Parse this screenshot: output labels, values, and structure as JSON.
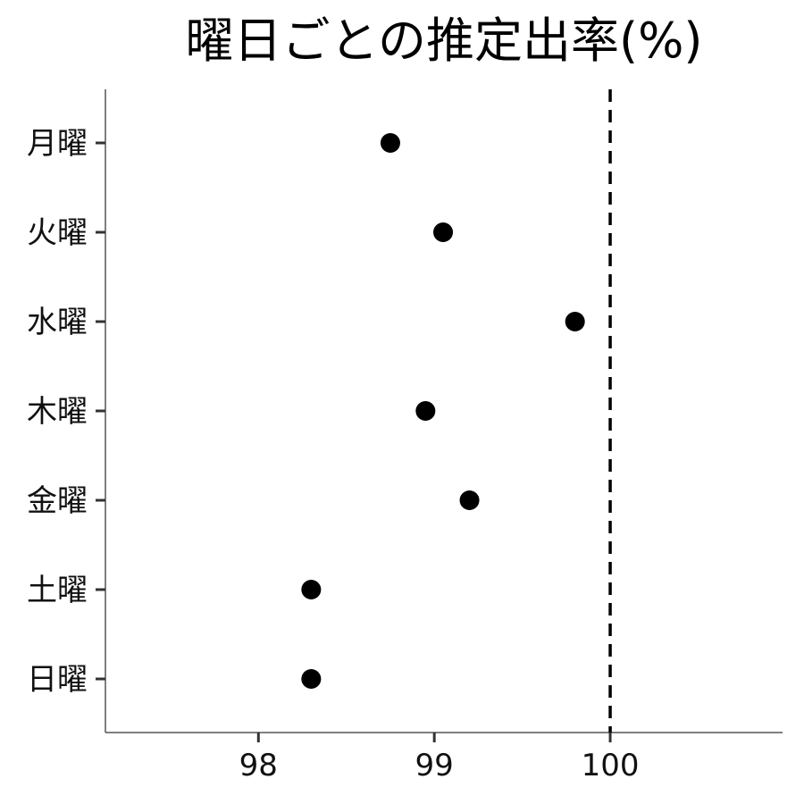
{
  "chart_data": {
    "type": "scatter",
    "title": "曜日ごとの推定出率(%)",
    "xlabel": "",
    "ylabel": "",
    "categories": [
      "月曜",
      "火曜",
      "水曜",
      "木曜",
      "金曜",
      "土曜",
      "日曜"
    ],
    "values": [
      98.75,
      99.05,
      99.8,
      98.95,
      99.2,
      98.3,
      98.3
    ],
    "xlim": [
      97.13,
      100.98
    ],
    "xticks": [
      98,
      99,
      100
    ],
    "xtick_labels": [
      "98",
      "99",
      "100"
    ],
    "reference_line": {
      "x": 100,
      "style": "dashed"
    },
    "grid": false,
    "legend": "none",
    "colors": {
      "point": "#000000",
      "reference_line": "#000000",
      "axis": "#555555"
    }
  }
}
